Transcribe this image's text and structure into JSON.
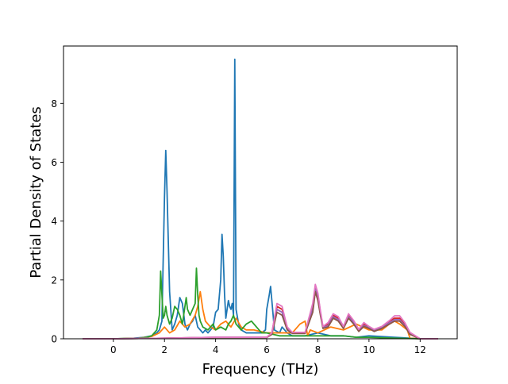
{
  "chart_data": {
    "type": "line",
    "xlabel": "Frequency (THz)",
    "ylabel": "Partial Density of States",
    "xlim": [
      -1.95,
      13.45
    ],
    "ylim": [
      0,
      9.95
    ],
    "xticks": [
      0,
      2,
      4,
      6,
      8,
      10,
      12
    ],
    "yticks": [
      0,
      2,
      4,
      6,
      8
    ],
    "grid": false,
    "legend": "none",
    "series": [
      {
        "color": "#1f77b4",
        "x": [
          -1.2,
          0.0,
          0.8,
          1.2,
          1.5,
          1.7,
          1.8,
          1.9,
          2.0,
          2.05,
          2.1,
          2.2,
          2.3,
          2.4,
          2.5,
          2.6,
          2.7,
          2.8,
          2.9,
          3.0,
          3.1,
          3.2,
          3.3,
          3.4,
          3.5,
          3.6,
          3.7,
          3.8,
          3.9,
          4.0,
          4.1,
          4.2,
          4.25,
          4.3,
          4.35,
          4.4,
          4.5,
          4.55,
          4.6,
          4.65,
          4.7,
          4.75,
          4.8,
          4.9,
          5.0,
          5.2,
          5.5,
          5.8,
          5.95,
          6.0,
          6.1,
          6.15,
          6.2,
          6.3,
          6.5,
          6.6,
          6.8,
          7.0,
          7.5,
          8.0,
          8.5,
          9.0,
          9.5,
          10.0,
          11.0,
          11.6,
          12.0,
          12.7
        ],
        "values": [
          0,
          0,
          0.02,
          0.05,
          0.1,
          0.2,
          0.3,
          0.6,
          4.8,
          6.4,
          5.0,
          1.6,
          0.3,
          0.5,
          0.8,
          1.4,
          1.2,
          0.5,
          0.3,
          0.5,
          0.6,
          0.8,
          0.4,
          0.3,
          0.2,
          0.3,
          0.2,
          0.3,
          0.4,
          0.9,
          1.0,
          2.0,
          3.55,
          2.8,
          1.5,
          0.7,
          1.3,
          1.1,
          1.0,
          1.2,
          0.8,
          9.5,
          1.0,
          0.5,
          0.3,
          0.2,
          0.2,
          0.2,
          0.3,
          1.0,
          1.5,
          1.78,
          1.3,
          0.3,
          0.2,
          0.4,
          0.2,
          0.1,
          0.1,
          0.2,
          0.1,
          0.1,
          0.05,
          0.1,
          0.05,
          0.02,
          0,
          0
        ]
      },
      {
        "color": "#ff7f0e",
        "x": [
          -1.2,
          0.0,
          1.0,
          1.5,
          1.8,
          2.0,
          2.2,
          2.4,
          2.6,
          2.8,
          3.0,
          3.2,
          3.3,
          3.4,
          3.5,
          3.6,
          3.8,
          4.0,
          4.2,
          4.4,
          4.6,
          4.8,
          5.0,
          5.2,
          5.5,
          6.0,
          6.5,
          7.0,
          7.3,
          7.5,
          7.6,
          7.7,
          8.0,
          8.5,
          9.0,
          9.5,
          10.0,
          10.5,
          10.8,
          11.0,
          11.2,
          11.5,
          11.6,
          12.0,
          12.7
        ],
        "values": [
          0,
          0,
          0.02,
          0.08,
          0.2,
          0.4,
          0.2,
          0.3,
          0.6,
          0.4,
          0.5,
          0.8,
          1.1,
          1.6,
          1.0,
          0.6,
          0.4,
          0.3,
          0.5,
          0.6,
          0.4,
          0.7,
          0.4,
          0.3,
          0.3,
          0.2,
          0.2,
          0.2,
          0.5,
          0.6,
          0.1,
          0.3,
          0.2,
          0.4,
          0.3,
          0.5,
          0.3,
          0.3,
          0.5,
          0.6,
          0.5,
          0.3,
          0.02,
          0,
          0
        ]
      },
      {
        "color": "#2ca02c",
        "x": [
          -1.2,
          0.0,
          1.0,
          1.3,
          1.5,
          1.7,
          1.8,
          1.85,
          1.9,
          1.95,
          2.0,
          2.05,
          2.1,
          2.2,
          2.3,
          2.4,
          2.5,
          2.6,
          2.7,
          2.8,
          2.85,
          2.9,
          3.0,
          3.1,
          3.2,
          3.25,
          3.3,
          3.35,
          3.4,
          3.5,
          3.7,
          3.9,
          4.0,
          4.2,
          4.4,
          4.5,
          4.6,
          4.7,
          4.8,
          5.0,
          5.2,
          5.4,
          5.6,
          5.8,
          6.0,
          6.5,
          7.0,
          7.5,
          8.0,
          8.5,
          9.0,
          9.5,
          10.0,
          11.0,
          11.6,
          12.0,
          12.7
        ],
        "values": [
          0,
          0,
          0.02,
          0.05,
          0.1,
          0.3,
          0.8,
          2.3,
          1.5,
          0.7,
          0.8,
          1.1,
          0.8,
          0.5,
          0.7,
          1.1,
          1.0,
          0.8,
          0.5,
          1.1,
          1.4,
          1.0,
          0.8,
          1.0,
          1.2,
          2.4,
          1.5,
          0.8,
          0.6,
          0.4,
          0.3,
          0.5,
          0.3,
          0.4,
          0.3,
          0.5,
          0.6,
          0.8,
          0.5,
          0.3,
          0.5,
          0.6,
          0.4,
          0.2,
          0.2,
          0.1,
          0.1,
          0.1,
          0.1,
          0.1,
          0.1,
          0.05,
          0.05,
          0.02,
          0.01,
          0,
          0
        ]
      },
      {
        "color": "#d62728",
        "x": [
          -1.2,
          0.0,
          2.0,
          4.0,
          6.0,
          6.2,
          6.4,
          6.6,
          6.8,
          7.0,
          7.5,
          7.8,
          7.9,
          8.0,
          8.1,
          8.2,
          8.4,
          8.6,
          8.8,
          9.0,
          9.2,
          9.4,
          9.6,
          9.8,
          10.0,
          10.2,
          10.5,
          10.8,
          11.0,
          11.2,
          11.4,
          11.6,
          12.0,
          12.7
        ],
        "values": [
          0,
          0,
          0.02,
          0.05,
          0.05,
          0.2,
          1.1,
          1.0,
          0.4,
          0.2,
          0.2,
          1.1,
          1.8,
          1.5,
          0.9,
          0.4,
          0.5,
          0.8,
          0.7,
          0.4,
          0.8,
          0.6,
          0.3,
          0.5,
          0.4,
          0.3,
          0.4,
          0.6,
          0.7,
          0.7,
          0.5,
          0.2,
          0,
          0
        ]
      },
      {
        "color": "#9467bd",
        "x": [
          -1.2,
          0.0,
          2.0,
          4.0,
          6.0,
          6.2,
          6.4,
          6.6,
          6.8,
          7.0,
          7.5,
          7.8,
          7.9,
          8.0,
          8.1,
          8.2,
          8.4,
          8.6,
          8.8,
          9.0,
          9.2,
          9.4,
          9.6,
          9.8,
          10.0,
          10.2,
          10.5,
          10.8,
          11.0,
          11.2,
          11.4,
          11.6,
          12.0,
          12.7
        ],
        "values": [
          0,
          0,
          0.02,
          0.05,
          0.05,
          0.18,
          1.0,
          0.9,
          0.35,
          0.2,
          0.2,
          1.0,
          1.7,
          1.4,
          0.85,
          0.38,
          0.45,
          0.75,
          0.65,
          0.38,
          0.75,
          0.55,
          0.28,
          0.45,
          0.38,
          0.28,
          0.38,
          0.55,
          0.65,
          0.65,
          0.45,
          0.18,
          0,
          0
        ]
      },
      {
        "color": "#8c564b",
        "x": [
          -1.2,
          0.0,
          2.0,
          4.0,
          6.0,
          6.2,
          6.4,
          6.6,
          6.8,
          7.0,
          7.5,
          7.8,
          7.9,
          8.0,
          8.1,
          8.2,
          8.4,
          8.6,
          8.8,
          9.0,
          9.2,
          9.4,
          9.6,
          9.8,
          10.0,
          10.2,
          10.5,
          10.8,
          11.0,
          11.2,
          11.4,
          11.6,
          12.0,
          12.7
        ],
        "values": [
          0,
          0,
          0.02,
          0.04,
          0.04,
          0.15,
          0.9,
          0.8,
          0.3,
          0.18,
          0.18,
          0.9,
          1.6,
          1.3,
          0.8,
          0.35,
          0.4,
          0.7,
          0.6,
          0.35,
          0.7,
          0.5,
          0.25,
          0.42,
          0.35,
          0.25,
          0.35,
          0.5,
          0.6,
          0.6,
          0.42,
          0.15,
          0,
          0
        ]
      },
      {
        "color": "#e377c2",
        "x": [
          -1.2,
          0.0,
          2.0,
          4.0,
          6.0,
          6.2,
          6.4,
          6.6,
          6.8,
          7.0,
          7.5,
          7.8,
          7.9,
          8.0,
          8.1,
          8.2,
          8.4,
          8.6,
          8.8,
          9.0,
          9.2,
          9.4,
          9.6,
          9.8,
          10.0,
          10.2,
          10.5,
          10.8,
          11.0,
          11.2,
          11.4,
          11.6,
          12.0,
          12.7
        ],
        "values": [
          0,
          0,
          0.02,
          0.05,
          0.05,
          0.2,
          1.2,
          1.1,
          0.4,
          0.22,
          0.22,
          1.2,
          1.85,
          1.55,
          0.95,
          0.42,
          0.55,
          0.85,
          0.75,
          0.42,
          0.85,
          0.62,
          0.32,
          0.55,
          0.42,
          0.32,
          0.42,
          0.62,
          0.78,
          0.78,
          0.55,
          0.22,
          0,
          0
        ]
      }
    ]
  }
}
